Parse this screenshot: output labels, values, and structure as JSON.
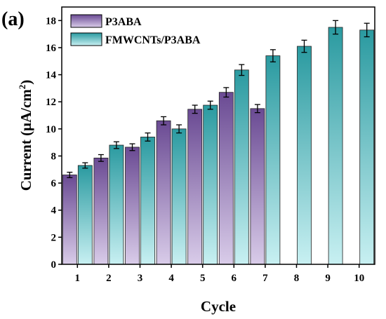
{
  "panel_label": "(a)",
  "colors": {
    "p3aba_top": "#6a4a93",
    "p3aba_bottom": "#d9cce9",
    "fmwcnts_top": "#2a9aa0",
    "fmwcnts_bottom": "#c8f0f2"
  },
  "chart_data": {
    "type": "bar",
    "xlabel": "Cycle",
    "ylabel_main": "Current (μA/cm",
    "ylabel_sup": "2",
    "ylabel_close": ")",
    "categories": [
      "1",
      "2",
      "3",
      "4",
      "5",
      "6",
      "7",
      "8",
      "9",
      "10"
    ],
    "ylim": [
      0,
      19
    ],
    "yticks": [
      0,
      2,
      4,
      6,
      8,
      10,
      12,
      14,
      16,
      18
    ],
    "legend_position": "top-left",
    "series": [
      {
        "name": "P3ABA",
        "values": [
          6.6,
          7.85,
          8.65,
          10.6,
          11.45,
          12.7,
          11.5,
          null,
          null,
          null
        ],
        "errors": [
          0.2,
          0.25,
          0.25,
          0.3,
          0.3,
          0.35,
          0.3,
          null,
          null,
          null
        ]
      },
      {
        "name": "FMWCNTs/P3ABA",
        "values": [
          7.3,
          8.8,
          9.4,
          10.0,
          11.75,
          14.35,
          15.4,
          16.1,
          17.5,
          17.3
        ],
        "errors": [
          0.2,
          0.25,
          0.3,
          0.3,
          0.3,
          0.4,
          0.45,
          0.45,
          0.5,
          0.5
        ]
      }
    ]
  }
}
